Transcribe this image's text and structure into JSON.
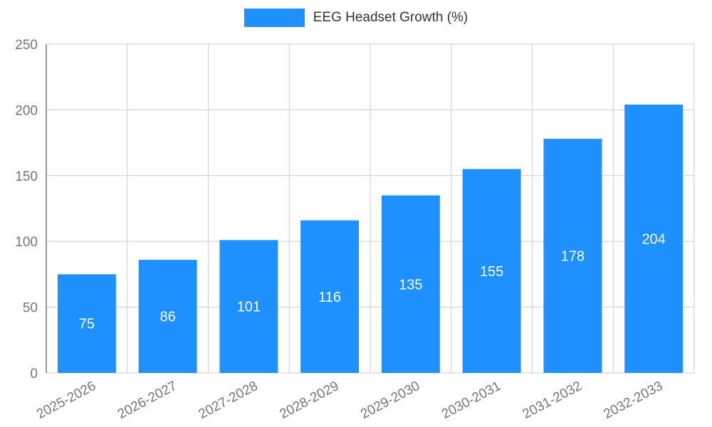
{
  "chart_data": {
    "type": "bar",
    "title": "EEG Headset Growth (%)",
    "categories": [
      "2025-2026",
      "2026-2027",
      "2027-2028",
      "2028-2029",
      "2029-2030",
      "2030-2031",
      "2031-2032",
      "2032-2033"
    ],
    "values": [
      75,
      86,
      101,
      116,
      135,
      155,
      178,
      204
    ],
    "xlabel": "",
    "ylabel": "",
    "ylim": [
      0,
      250
    ],
    "yticks": [
      0,
      50,
      100,
      150,
      200,
      250
    ],
    "grid": true,
    "legend_position": "top",
    "bar_color": "#1E90FF",
    "value_label_color": "#ffffff",
    "axis_text_color": "#757575",
    "grid_color": "#cccccc",
    "axis_line_color": "#333333",
    "legend_text_color": "#333333"
  }
}
